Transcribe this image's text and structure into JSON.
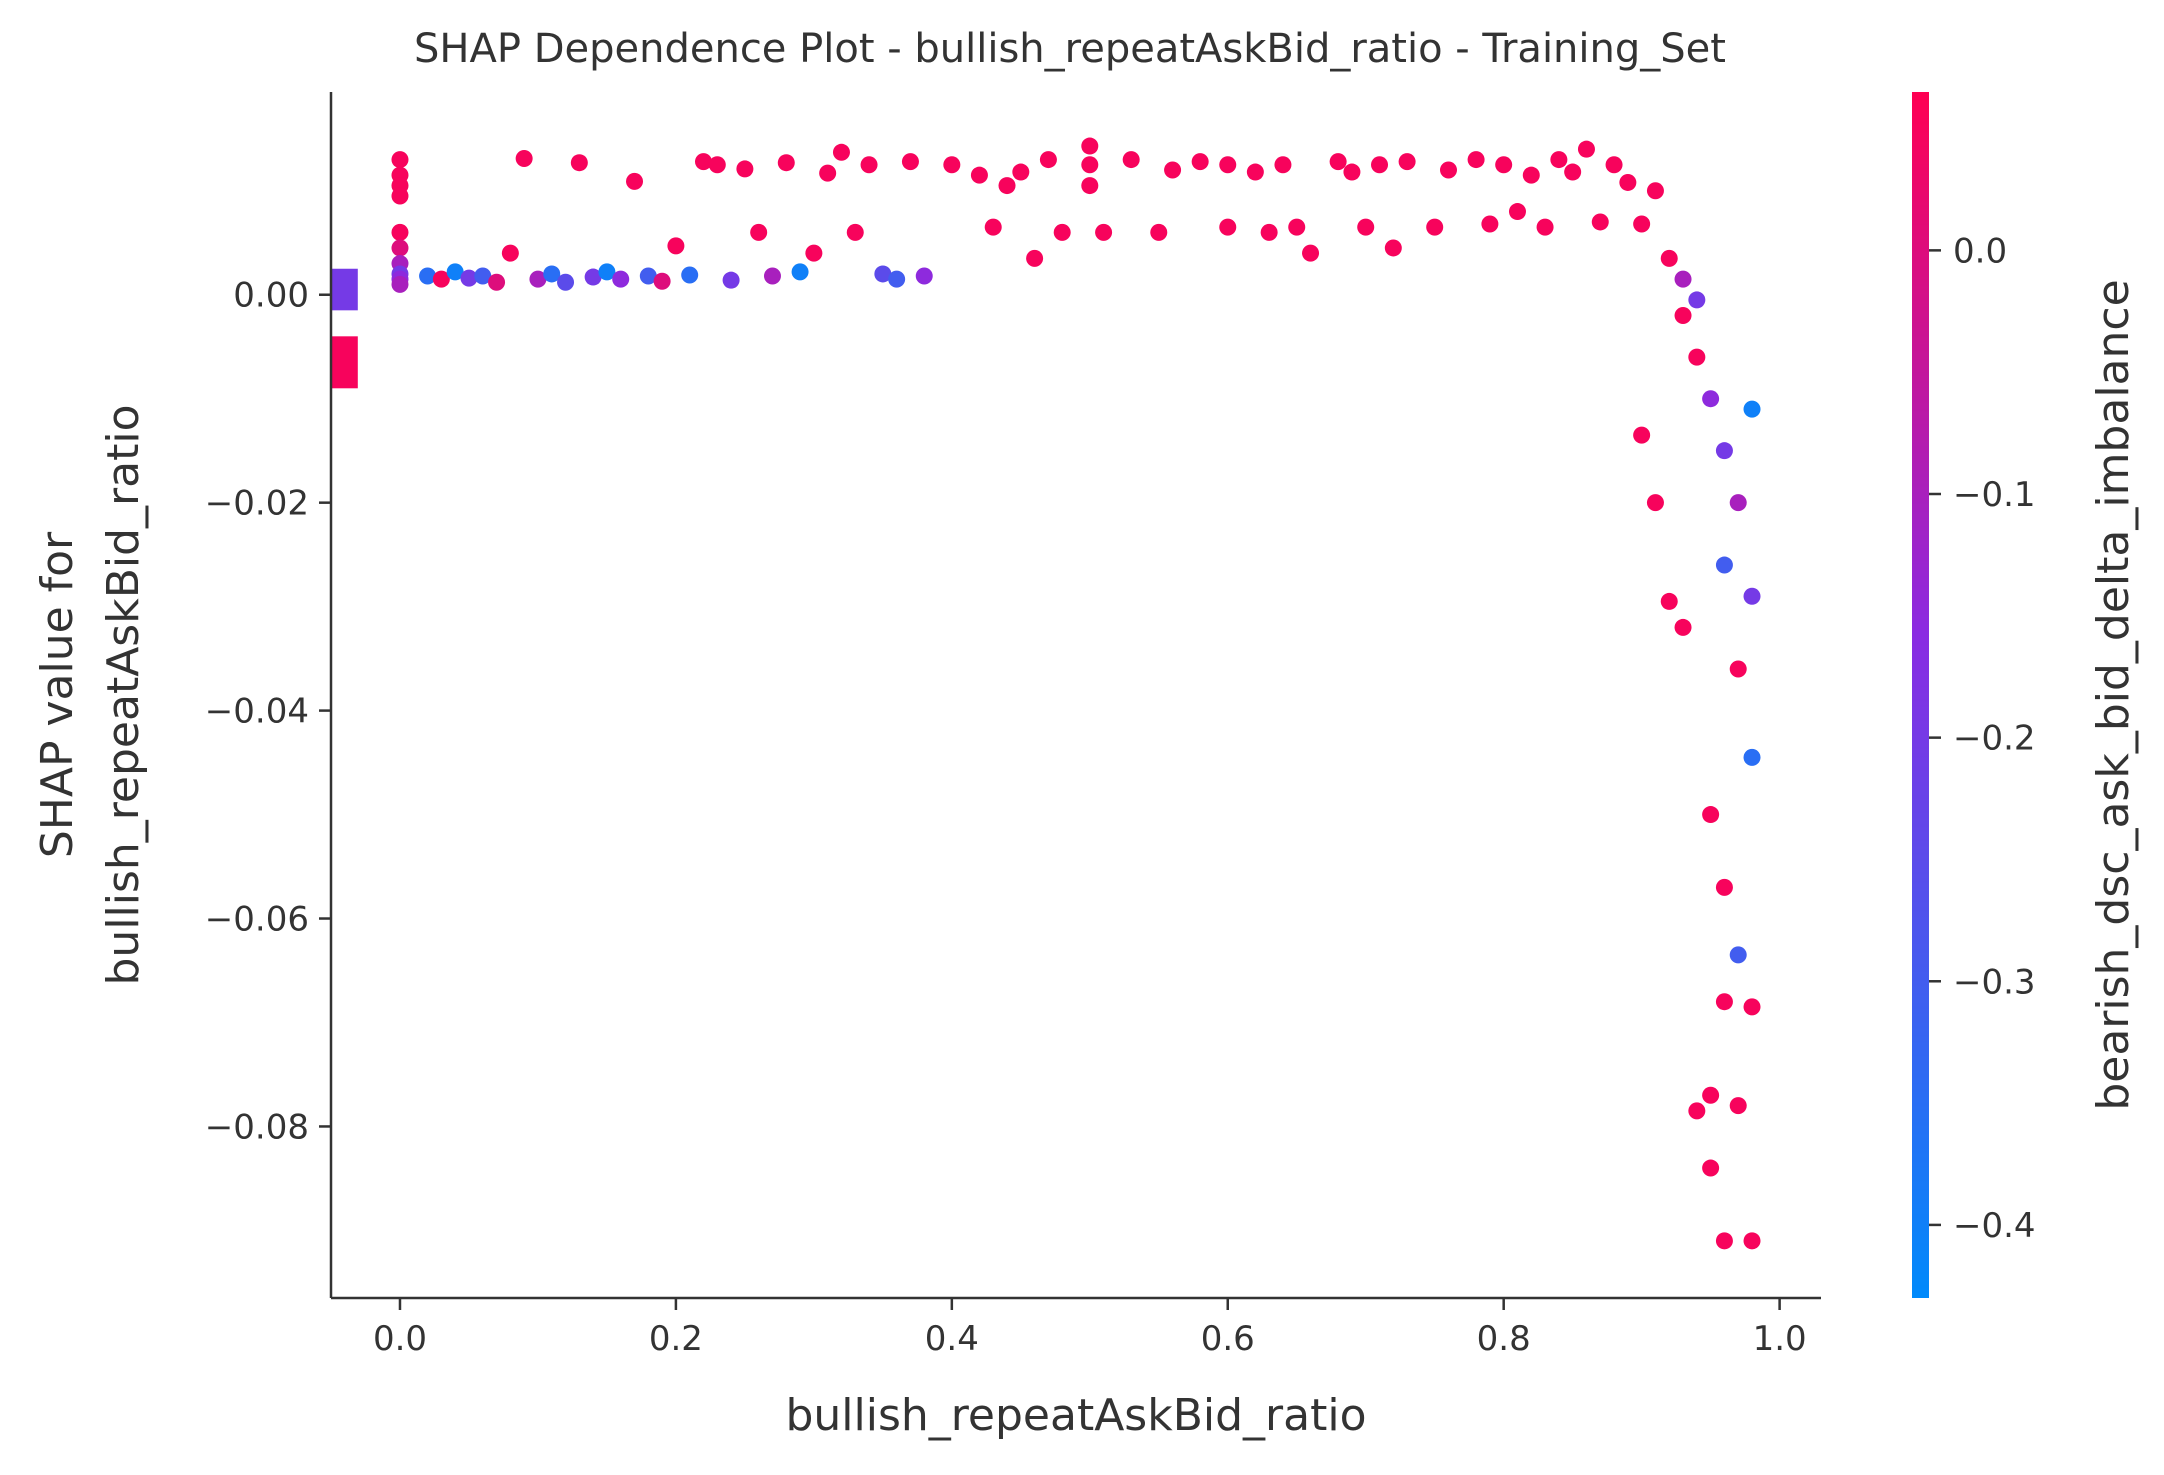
{
  "chart_data": {
    "type": "scatter",
    "title": "SHAP Dependence Plot - bullish_repeatAskBid_ratio - Training_Set",
    "xlabel": "bullish_repeatAskBid_ratio",
    "ylabel_lines": [
      "SHAP value for",
      "bullish_repeatAskBid_ratio"
    ],
    "xlim": [
      -0.05,
      1.03
    ],
    "ylim": [
      -0.0965,
      0.0195
    ],
    "x_ticks": [
      {
        "value": 0.0,
        "label": "0.0"
      },
      {
        "value": 0.2,
        "label": "0.2"
      },
      {
        "value": 0.4,
        "label": "0.4"
      },
      {
        "value": 0.6,
        "label": "0.6"
      },
      {
        "value": 0.8,
        "label": "0.8"
      },
      {
        "value": 1.0,
        "label": "1.0"
      }
    ],
    "y_ticks": [
      {
        "value": 0.0,
        "label": "0.00"
      },
      {
        "value": -0.02,
        "label": "−0.02"
      },
      {
        "value": -0.04,
        "label": "−0.04"
      },
      {
        "value": -0.06,
        "label": "−0.06"
      },
      {
        "value": -0.08,
        "label": "−0.08"
      }
    ],
    "colorbar": {
      "label": "bearish_dsc_ask_bid_delta_imbalance",
      "range": [
        -0.43,
        0.065
      ],
      "colors": [
        "#008afb",
        "#ff0052"
      ],
      "mid_color": "#8a2be2",
      "ticks": [
        {
          "value": 0.0,
          "label": "0.0"
        },
        {
          "value": -0.1,
          "label": "−0.1"
        },
        {
          "value": -0.2,
          "label": "−0.2"
        },
        {
          "value": -0.3,
          "label": "−0.3"
        },
        {
          "value": -0.4,
          "label": "−0.4"
        }
      ]
    },
    "nan_points": {
      "x": -0.04,
      "groups": [
        {
          "y_range": [
            -0.0015,
            0.0025
          ],
          "color_value": -0.2
        },
        {
          "y_range": [
            -0.009,
            -0.004
          ],
          "color_value": 0.05
        }
      ]
    },
    "series": [
      {
        "points": [
          [
            0.0,
            0.013,
            0.05
          ],
          [
            0.0,
            0.0115,
            0.05
          ],
          [
            0.0,
            0.0105,
            0.05
          ],
          [
            0.0,
            0.0095,
            0.05
          ],
          [
            0.0,
            0.006,
            0.05
          ],
          [
            0.0,
            0.0045,
            0.0
          ],
          [
            0.0,
            0.003,
            -0.1
          ],
          [
            0.0,
            0.002,
            -0.2
          ],
          [
            0.0,
            0.0015,
            -0.15
          ],
          [
            0.0,
            0.001,
            -0.1
          ],
          [
            0.02,
            0.0018,
            -0.35
          ],
          [
            0.03,
            0.0015,
            0.05
          ],
          [
            0.04,
            0.0022,
            -0.4
          ],
          [
            0.05,
            0.0016,
            -0.2
          ],
          [
            0.06,
            0.0018,
            -0.3
          ],
          [
            0.07,
            0.0012,
            0.0
          ],
          [
            0.08,
            0.004,
            0.05
          ],
          [
            0.09,
            0.0131,
            0.05
          ],
          [
            0.1,
            0.0015,
            -0.1
          ],
          [
            0.11,
            0.002,
            -0.35
          ],
          [
            0.12,
            0.0012,
            -0.25
          ],
          [
            0.13,
            0.0127,
            0.05
          ],
          [
            0.14,
            0.0017,
            -0.2
          ],
          [
            0.15,
            0.0022,
            -0.4
          ],
          [
            0.16,
            0.0015,
            -0.15
          ],
          [
            0.17,
            0.0109,
            0.05
          ],
          [
            0.18,
            0.0018,
            -0.3
          ],
          [
            0.19,
            0.0013,
            0.0
          ],
          [
            0.2,
            0.0047,
            0.05
          ],
          [
            0.21,
            0.0019,
            -0.35
          ],
          [
            0.22,
            0.0128,
            0.05
          ],
          [
            0.23,
            0.0125,
            0.05
          ],
          [
            0.24,
            0.0014,
            -0.2
          ],
          [
            0.25,
            0.0121,
            0.05
          ],
          [
            0.26,
            0.006,
            0.05
          ],
          [
            0.27,
            0.0018,
            -0.1
          ],
          [
            0.28,
            0.0127,
            0.05
          ],
          [
            0.29,
            0.0022,
            -0.4
          ],
          [
            0.3,
            0.004,
            0.05
          ],
          [
            0.31,
            0.0117,
            0.05
          ],
          [
            0.32,
            0.0137,
            0.05
          ],
          [
            0.33,
            0.006,
            0.05
          ],
          [
            0.34,
            0.0125,
            0.05
          ],
          [
            0.35,
            0.002,
            -0.25
          ],
          [
            0.36,
            0.0015,
            -0.3
          ],
          [
            0.37,
            0.0128,
            0.05
          ],
          [
            0.38,
            0.0018,
            -0.15
          ],
          [
            0.4,
            0.0125,
            0.05
          ],
          [
            0.42,
            0.0115,
            0.05
          ],
          [
            0.43,
            0.0065,
            0.05
          ],
          [
            0.44,
            0.0105,
            0.05
          ],
          [
            0.45,
            0.0118,
            0.05
          ],
          [
            0.46,
            0.0035,
            0.05
          ],
          [
            0.47,
            0.013,
            0.05
          ],
          [
            0.48,
            0.006,
            0.05
          ],
          [
            0.5,
            0.0143,
            0.05
          ],
          [
            0.5,
            0.0125,
            0.05
          ],
          [
            0.5,
            0.0105,
            0.05
          ],
          [
            0.51,
            0.006,
            0.05
          ],
          [
            0.53,
            0.013,
            0.05
          ],
          [
            0.55,
            0.006,
            0.05
          ],
          [
            0.56,
            0.012,
            0.05
          ],
          [
            0.58,
            0.0128,
            0.05
          ],
          [
            0.6,
            0.0065,
            0.05
          ],
          [
            0.6,
            0.0125,
            0.05
          ],
          [
            0.62,
            0.0118,
            0.05
          ],
          [
            0.63,
            0.006,
            0.05
          ],
          [
            0.64,
            0.0125,
            0.05
          ],
          [
            0.65,
            0.0065,
            0.05
          ],
          [
            0.66,
            0.004,
            0.05
          ],
          [
            0.68,
            0.0128,
            0.05
          ],
          [
            0.69,
            0.0118,
            0.05
          ],
          [
            0.7,
            0.0065,
            0.05
          ],
          [
            0.71,
            0.0125,
            0.05
          ],
          [
            0.72,
            0.0045,
            0.05
          ],
          [
            0.73,
            0.0128,
            0.05
          ],
          [
            0.75,
            0.0065,
            0.05
          ],
          [
            0.76,
            0.012,
            0.05
          ],
          [
            0.78,
            0.013,
            0.05
          ],
          [
            0.79,
            0.0068,
            0.05
          ],
          [
            0.8,
            0.0125,
            0.05
          ],
          [
            0.81,
            0.008,
            0.05
          ],
          [
            0.82,
            0.0115,
            0.05
          ],
          [
            0.83,
            0.0065,
            0.05
          ],
          [
            0.84,
            0.013,
            0.05
          ],
          [
            0.85,
            0.0118,
            0.05
          ],
          [
            0.86,
            0.014,
            0.05
          ],
          [
            0.87,
            0.007,
            0.05
          ],
          [
            0.88,
            0.0125,
            0.05
          ],
          [
            0.89,
            0.0108,
            0.05
          ],
          [
            0.9,
            0.0068,
            0.05
          ],
          [
            0.91,
            0.01,
            0.05
          ],
          [
            0.92,
            0.0035,
            0.05
          ],
          [
            0.93,
            0.0015,
            -0.1
          ],
          [
            0.93,
            -0.002,
            0.05
          ],
          [
            0.94,
            -0.0005,
            -0.2
          ],
          [
            0.9,
            -0.0135,
            0.05
          ],
          [
            0.91,
            -0.02,
            0.05
          ],
          [
            0.92,
            -0.0295,
            0.05
          ],
          [
            0.93,
            -0.032,
            0.05
          ],
          [
            0.94,
            -0.006,
            0.05
          ],
          [
            0.95,
            -0.01,
            -0.15
          ],
          [
            0.95,
            -0.05,
            0.05
          ],
          [
            0.96,
            -0.015,
            -0.2
          ],
          [
            0.96,
            -0.057,
            0.05
          ],
          [
            0.96,
            -0.068,
            0.05
          ],
          [
            0.97,
            -0.02,
            -0.1
          ],
          [
            0.97,
            -0.0635,
            -0.3
          ],
          [
            0.94,
            -0.0785,
            0.05
          ],
          [
            0.95,
            -0.077,
            0.05
          ],
          [
            0.95,
            -0.084,
            0.05
          ],
          [
            0.96,
            -0.091,
            0.05
          ],
          [
            0.98,
            -0.091,
            0.05
          ],
          [
            0.97,
            -0.078,
            0.05
          ],
          [
            0.98,
            -0.0685,
            0.05
          ],
          [
            0.98,
            -0.0445,
            -0.35
          ],
          [
            0.98,
            -0.011,
            -0.4
          ],
          [
            0.97,
            -0.036,
            0.05
          ],
          [
            0.96,
            -0.026,
            -0.3
          ],
          [
            0.98,
            -0.029,
            -0.2
          ]
        ]
      }
    ]
  }
}
